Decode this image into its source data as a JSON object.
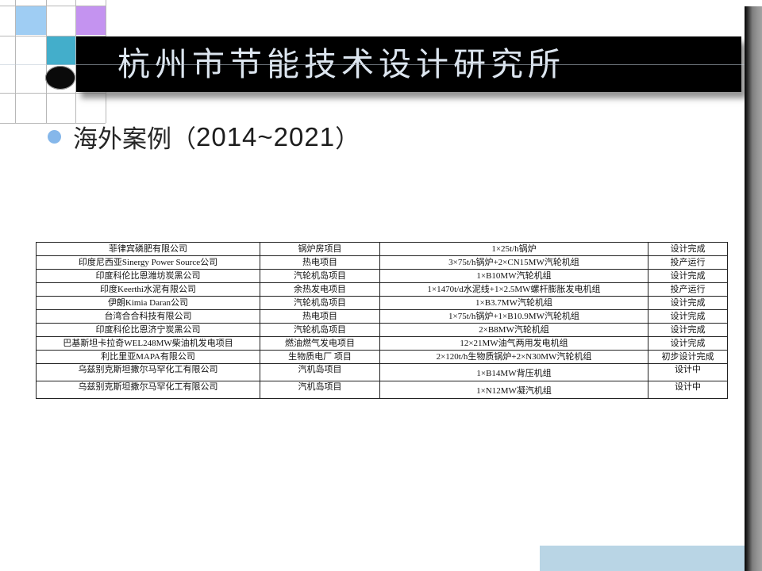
{
  "slide": {
    "title": "杭州市节能技术设计研究所",
    "bullet": {
      "text_prefix": "海外案例（",
      "text_years": "2014~2021",
      "text_suffix": "）"
    }
  },
  "table": {
    "tall_rows_from": 9,
    "rows": [
      [
        "菲律宾磷肥有限公司",
        "锅炉房项目",
        "1×25t/h锅炉",
        "设计完成"
      ],
      [
        "印度尼西亚Sinergy Power Source公司",
        "热电项目",
        "3×75t/h锅炉+2×CN15MW汽轮机组",
        "投产运行"
      ],
      [
        "印度科伦比恩潍坊炭黑公司",
        "汽轮机岛项目",
        "1×B10MW汽轮机组",
        "设计完成"
      ],
      [
        "印度Keerthi水泥有限公司",
        "余热发电项目",
        "1×1470t/d水泥线+1×2.5MW螺杆膨胀发电机组",
        "投产运行"
      ],
      [
        "伊朗Kimia Daran公司",
        "汽轮机岛项目",
        "1×B3.7MW汽轮机组",
        "设计完成"
      ],
      [
        "台湾合合科技有限公司",
        "热电项目",
        "1×75t/h锅炉+1×B10.9MW汽轮机组",
        "设计完成"
      ],
      [
        "印度科伦比恩济宁炭黑公司",
        "汽轮机岛项目",
        "2×B8MW汽轮机组",
        "设计完成"
      ],
      [
        "巴基斯坦卡拉奇WEL248MW柴油机发电项目",
        "燃油燃气发电项目",
        "12×21MW油气两用发电机组",
        "设计完成"
      ],
      [
        "利比里亚MAPA有限公司",
        "生物质电厂 项目",
        "2×120t/h生物质锅炉+2×N30MW汽轮机组",
        "初步设计完成"
      ],
      [
        "乌兹别克斯坦撒尔马罕化工有限公司",
        "汽机岛项目",
        "1×B14MW背压机组",
        "设计中"
      ],
      [
        "乌兹别克斯坦撒尔马罕化工有限公司",
        "汽机岛项目",
        "1×N12MW凝汽机组",
        "设计中"
      ]
    ]
  },
  "colors": {
    "banner_bg": "#000000",
    "title_text": "#dce5ef",
    "bullet_dot": "#85b7ea",
    "square_light_blue": "#9fcdf3",
    "square_purple": "#c493f0",
    "square_teal": "#43aecb",
    "circle_black": "#0a0a0a",
    "bottom_rect": "#b9d5e5",
    "table_border": "#222222",
    "table_text": "#111111"
  }
}
